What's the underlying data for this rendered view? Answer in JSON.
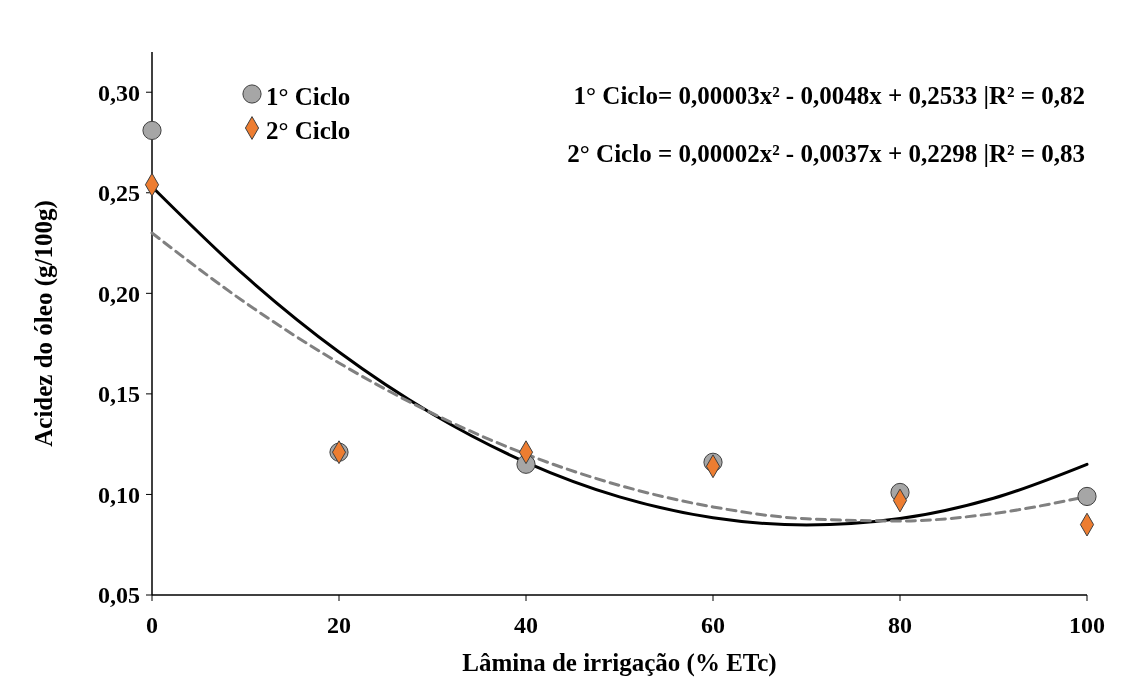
{
  "chart_data": {
    "type": "scatter",
    "xlabel": "Lâmina de irrigação (% ETc)",
    "ylabel": "Acidez do óleo (g/100g)",
    "xlim": [
      0,
      100
    ],
    "xticks": [
      0,
      20,
      40,
      60,
      80,
      100
    ],
    "ylim": [
      0.05,
      0.32
    ],
    "yticks": [
      {
        "value": 0.05,
        "label": "0,05"
      },
      {
        "value": 0.1,
        "label": "0,10"
      },
      {
        "value": 0.15,
        "label": "0,15"
      },
      {
        "value": 0.2,
        "label": "0,20"
      },
      {
        "value": 0.25,
        "label": "0,25"
      },
      {
        "value": 0.3,
        "label": "0,30"
      }
    ],
    "grid": false,
    "legend": "top left",
    "annotations": [
      "1° Ciclo= 0,00003x² - 0,0048x + 0,2533 |R² = 0,82",
      "2° Ciclo = 0,00002x² - 0,0037x + 0,2298 |R² = 0,83"
    ],
    "series": [
      {
        "type": "line",
        "color": "#000000",
        "line_style": "solid",
        "marker": "none",
        "x": [
          0,
          10,
          20,
          30,
          40,
          50,
          60,
          70,
          80,
          90,
          100
        ],
        "values": [
          0.253,
          0.2085,
          0.1708,
          0.14,
          0.116,
          0.0988,
          0.0884,
          0.0848,
          0.088,
          0.0981,
          0.115
        ]
      },
      {
        "type": "line",
        "color": "#808080",
        "line_style": "dashed",
        "marker": "none",
        "x": [
          0,
          10,
          20,
          30,
          40,
          50,
          60,
          70,
          80,
          90,
          100
        ],
        "values": [
          0.23,
          0.1953,
          0.1654,
          0.1403,
          0.12,
          0.1045,
          0.0938,
          0.0879,
          0.0868,
          0.0905,
          0.099
        ]
      },
      {
        "name": "1° Ciclo",
        "color": "#a6a6a6",
        "marker": "circle",
        "x": [
          0,
          20,
          40,
          60,
          80,
          100
        ],
        "values": [
          0.281,
          0.121,
          0.115,
          0.116,
          0.101,
          0.099
        ]
      },
      {
        "name": "2° Ciclo",
        "color": "#ed7d31",
        "marker": "diamond",
        "x": [
          0,
          20,
          40,
          60,
          80,
          100
        ],
        "values": [
          0.254,
          0.121,
          0.121,
          0.114,
          0.097,
          0.085
        ]
      }
    ]
  }
}
